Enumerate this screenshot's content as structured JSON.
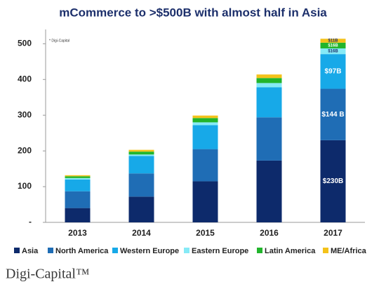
{
  "chart_data": {
    "type": "stacked_bar",
    "title": "mCommerce to >$500B with almost half in Asia",
    "note": "* Digi-Capital",
    "logo": "Digi-Capital™",
    "categories": [
      "2013",
      "2014",
      "2015",
      "2016",
      "2017"
    ],
    "series": [
      {
        "name": "Asia",
        "color": "#0d2a6b",
        "values": [
          40,
          72,
          115,
          173,
          230
        ],
        "value_labels": [
          null,
          null,
          null,
          null,
          "$230B"
        ]
      },
      {
        "name": "North America",
        "color": "#1f6db5",
        "values": [
          47,
          65,
          90,
          121,
          144
        ],
        "value_labels": [
          null,
          null,
          null,
          null,
          "$144 B"
        ]
      },
      {
        "name": "Western Europe",
        "color": "#17a9e8",
        "values": [
          33,
          49,
          67,
          84,
          97
        ],
        "value_labels": [
          null,
          null,
          null,
          null,
          "$97B"
        ]
      },
      {
        "name": "Eastern Europe",
        "color": "#86eaf6",
        "values": [
          4,
          4,
          8,
          12,
          16
        ],
        "value_labels": [
          null,
          null,
          null,
          null,
          "$16B"
        ]
      },
      {
        "name": "Latin America",
        "color": "#22b52c",
        "values": [
          5,
          8,
          12,
          14,
          16
        ],
        "value_labels": [
          null,
          null,
          null,
          null,
          "$16B"
        ]
      },
      {
        "name": "ME/Africa",
        "color": "#f4c21a",
        "values": [
          3,
          5,
          7,
          10,
          11
        ],
        "value_labels": [
          null,
          null,
          null,
          null,
          "$11B"
        ]
      }
    ],
    "ylim": [
      0,
      540
    ],
    "yticks": [
      {
        "value": 0,
        "label": "-"
      },
      100,
      200,
      300,
      400,
      500
    ]
  }
}
